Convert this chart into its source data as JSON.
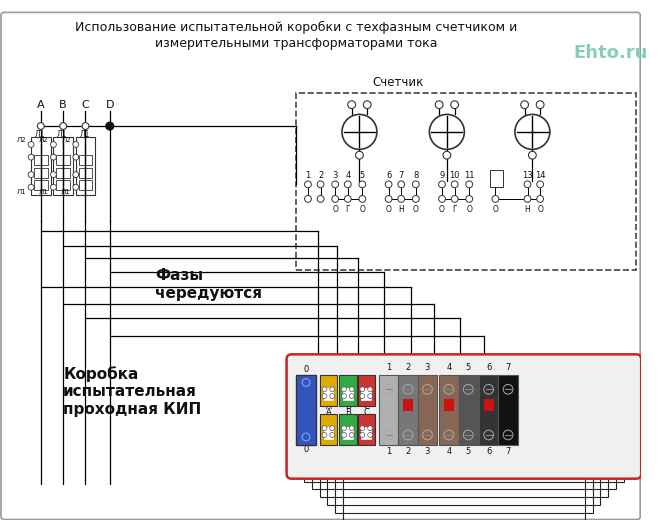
{
  "title_line1": "Использование испытательной коробки с техфазным счетчиком и",
  "title_line2": "измерительными трансформаторами тока",
  "watermark": "Ehto.ru",
  "label_schetchik": "Счетчик",
  "label_fazy": "Фазы\nчередуются",
  "label_korobka": "Коробка\nиспытательная\nпроходная КИП",
  "bg_color": "#ffffff",
  "watermark_color": "#88ccbb",
  "title_color": "#111111"
}
